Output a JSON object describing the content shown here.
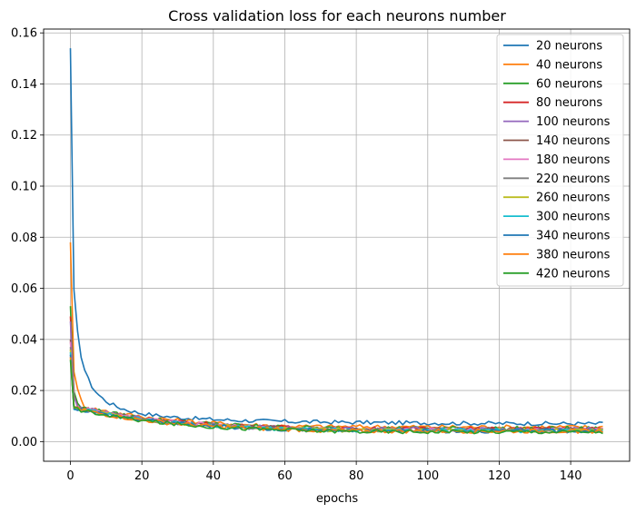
{
  "chart_data": {
    "type": "line",
    "title": "Cross validation loss for each neurons number",
    "xlabel": "epochs",
    "ylabel": "",
    "xlim": [
      -7.5,
      156.5
    ],
    "ylim": [
      -0.0077,
      0.1615
    ],
    "xticks": [
      0,
      20,
      40,
      60,
      80,
      100,
      120,
      140
    ],
    "yticks": [
      0.0,
      0.02,
      0.04,
      0.06,
      0.08,
      0.1,
      0.12,
      0.14,
      0.16
    ],
    "ytick_labels": [
      "0.00",
      "0.02",
      "0.04",
      "0.06",
      "0.08",
      "0.10",
      "0.12",
      "0.14",
      "0.16"
    ],
    "grid": true,
    "legend_position": "upper right",
    "epochs": 150,
    "series": [
      {
        "name": "20 neurons",
        "color": "#1f77b4",
        "start": 0.154,
        "floor": 0.0065,
        "decay": 1.6
      },
      {
        "name": "40 neurons",
        "color": "#ff7f0e",
        "start": 0.078,
        "floor": 0.0055,
        "decay": 1.2
      },
      {
        "name": "60 neurons",
        "color": "#2ca02c",
        "start": 0.053,
        "floor": 0.005,
        "decay": 1.2
      },
      {
        "name": "80 neurons",
        "color": "#d62728",
        "start": 0.049,
        "floor": 0.0048,
        "decay": 1.1
      },
      {
        "name": "100 neurons",
        "color": "#9467bd",
        "start": 0.047,
        "floor": 0.0047,
        "decay": 1.1
      },
      {
        "name": "140 neurons",
        "color": "#8c564b",
        "start": 0.04,
        "floor": 0.0046,
        "decay": 1.0
      },
      {
        "name": "180 neurons",
        "color": "#e377c2",
        "start": 0.039,
        "floor": 0.0045,
        "decay": 1.0
      },
      {
        "name": "220 neurons",
        "color": "#7f7f7f",
        "start": 0.037,
        "floor": 0.0044,
        "decay": 1.0
      },
      {
        "name": "260 neurons",
        "color": "#bcbd22",
        "start": 0.036,
        "floor": 0.0043,
        "decay": 1.0
      },
      {
        "name": "300 neurons",
        "color": "#17becf",
        "start": 0.035,
        "floor": 0.0042,
        "decay": 1.0
      },
      {
        "name": "340 neurons",
        "color": "#1f77b4",
        "start": 0.034,
        "floor": 0.0041,
        "decay": 1.0
      },
      {
        "name": "380 neurons",
        "color": "#ff7f0e",
        "start": 0.033,
        "floor": 0.004,
        "decay": 1.0
      },
      {
        "name": "420 neurons",
        "color": "#2ca02c",
        "start": 0.032,
        "floor": 0.0038,
        "decay": 1.0
      }
    ]
  }
}
